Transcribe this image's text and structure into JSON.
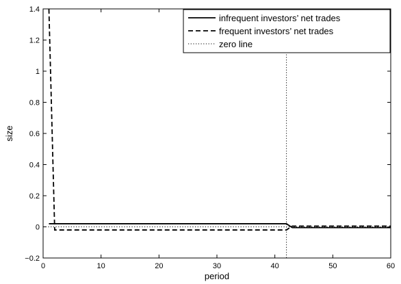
{
  "chart_data": {
    "type": "line",
    "title": "",
    "xlabel": "period",
    "ylabel": "size",
    "xlim": [
      0,
      60
    ],
    "ylim": [
      -0.2,
      1.4
    ],
    "xticks": [
      0,
      10,
      20,
      30,
      40,
      50,
      60
    ],
    "yticks": [
      -0.2,
      0,
      0.2,
      0.4,
      0.6,
      0.8,
      1,
      1.2,
      1.4
    ],
    "ytick_labels": [
      "−0.2",
      "0",
      "0.2",
      "0.4",
      "0.6",
      "0.8",
      "1",
      "1.2",
      "1.4"
    ],
    "grid": false,
    "legend_position": "top-right",
    "series": [
      {
        "name": "infrequent investors’ net trades",
        "style": "solid",
        "color": "#000000",
        "x": [
          1,
          42,
          43,
          60
        ],
        "y": [
          0.02,
          0.02,
          -0.005,
          -0.005
        ]
      },
      {
        "name": "frequent investors’ net trades",
        "style": "dashed",
        "color": "#000000",
        "x": [
          1,
          2,
          42,
          43,
          60
        ],
        "y": [
          1.4,
          -0.02,
          -0.02,
          0.005,
          0.005
        ]
      },
      {
        "name": "zero line",
        "style": "dotted",
        "color": "#000000",
        "x": [
          0,
          60
        ],
        "y": [
          0,
          0
        ]
      }
    ],
    "annotations": [
      {
        "type": "vertical-dotted-line",
        "x": 42
      }
    ]
  }
}
